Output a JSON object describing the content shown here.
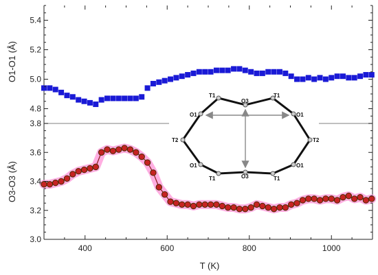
{
  "chart_data": [
    {
      "type": "scatter",
      "name": "top-panel",
      "ylabel": "O1-O1 (Å)",
      "xlabel": "",
      "xlim": [
        300,
        1100
      ],
      "ylim": [
        4.7,
        5.5
      ],
      "yticks": [
        4.8,
        5.0,
        5.2,
        5.4
      ],
      "marker": "square",
      "color": "#1a1ad6",
      "series": [
        {
          "x": [
            300,
            314,
            328,
            342,
            356,
            370,
            384,
            398,
            412,
            426,
            440,
            454,
            468,
            482,
            496,
            510,
            524,
            538,
            552,
            566,
            580,
            594,
            608,
            622,
            636,
            650,
            664,
            678,
            692,
            706,
            720,
            734,
            748,
            762,
            776,
            790,
            804,
            818,
            832,
            846,
            860,
            874,
            888,
            902,
            916,
            930,
            944,
            958,
            972,
            986,
            1000,
            1014,
            1028,
            1042,
            1056,
            1070,
            1084,
            1098
          ],
          "y": [
            4.94,
            4.94,
            4.93,
            4.91,
            4.89,
            4.88,
            4.86,
            4.85,
            4.84,
            4.83,
            4.86,
            4.87,
            4.87,
            4.87,
            4.87,
            4.87,
            4.87,
            4.88,
            4.94,
            4.97,
            4.98,
            4.99,
            5.0,
            5.01,
            5.02,
            5.03,
            5.04,
            5.05,
            5.05,
            5.05,
            5.06,
            5.06,
            5.06,
            5.07,
            5.07,
            5.06,
            5.05,
            5.04,
            5.04,
            5.05,
            5.05,
            5.05,
            5.04,
            5.02,
            5.0,
            5.0,
            5.01,
            5.0,
            5.01,
            5.0,
            5.01,
            5.02,
            5.02,
            5.01,
            5.01,
            5.02,
            5.03,
            5.03
          ]
        }
      ]
    },
    {
      "type": "line",
      "name": "bottom-panel",
      "ylabel": "O3-O3 (Å)",
      "xlabel": "T (K)",
      "xlim": [
        300,
        1100
      ],
      "ylim": [
        3.0,
        3.8
      ],
      "yticks": [
        3.0,
        3.2,
        3.4,
        3.6,
        3.8
      ],
      "xticks": [
        400,
        600,
        800,
        1000
      ],
      "marker": "circle",
      "color": "#c62323",
      "band_color": "#ff9ad9",
      "series": [
        {
          "x": [
            300,
            314,
            328,
            342,
            356,
            370,
            384,
            398,
            412,
            426,
            440,
            454,
            468,
            482,
            496,
            510,
            524,
            538,
            552,
            566,
            580,
            594,
            608,
            622,
            636,
            650,
            664,
            678,
            692,
            706,
            720,
            734,
            748,
            762,
            776,
            790,
            804,
            818,
            832,
            846,
            860,
            874,
            888,
            902,
            916,
            930,
            944,
            958,
            972,
            986,
            1000,
            1014,
            1028,
            1042,
            1056,
            1070,
            1084,
            1098
          ],
          "y": [
            3.38,
            3.38,
            3.39,
            3.4,
            3.42,
            3.45,
            3.47,
            3.48,
            3.49,
            3.5,
            3.6,
            3.62,
            3.61,
            3.62,
            3.63,
            3.62,
            3.6,
            3.57,
            3.53,
            3.46,
            3.36,
            3.31,
            3.26,
            3.25,
            3.24,
            3.24,
            3.23,
            3.24,
            3.24,
            3.24,
            3.24,
            3.23,
            3.22,
            3.22,
            3.21,
            3.21,
            3.22,
            3.24,
            3.23,
            3.22,
            3.21,
            3.22,
            3.22,
            3.24,
            3.25,
            3.27,
            3.28,
            3.28,
            3.27,
            3.28,
            3.28,
            3.27,
            3.29,
            3.3,
            3.28,
            3.29,
            3.27,
            3.28
          ]
        }
      ]
    }
  ],
  "xlabel": "T (K)",
  "inset": {
    "labels": {
      "t1_top_left": "T1",
      "t1_top_right": "T1",
      "o3_top": "O3",
      "o1_left": "O1",
      "o1_right": "O1",
      "t2_left": "T2",
      "t2_right": "T2",
      "o1_bottom_left": "O1",
      "o1_bottom_right": "O1",
      "t1_bottom_left": "T1",
      "o3_bottom": "O3",
      "t1_bottom_right": "T1"
    }
  }
}
